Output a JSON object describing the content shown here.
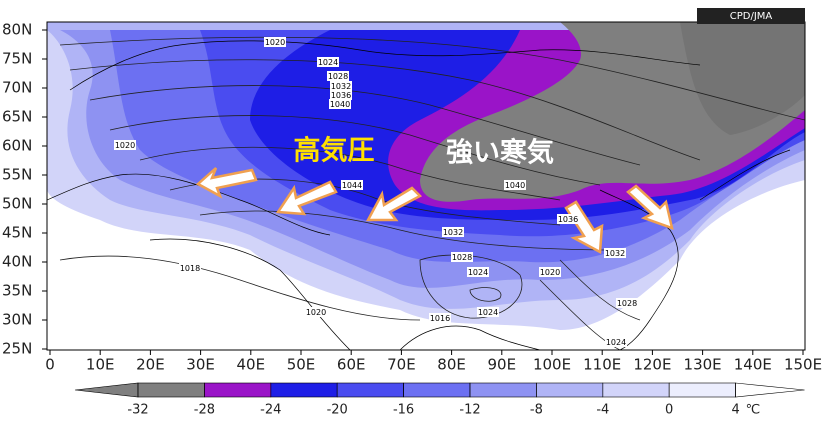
{
  "map": {
    "credit": "CPD/JMA",
    "lat_labels": [
      "80N",
      "75N",
      "70N",
      "65N",
      "60N",
      "55N",
      "50N",
      "45N",
      "40N",
      "35N",
      "30N",
      "25N"
    ],
    "lon_labels": [
      "0",
      "10E",
      "20E",
      "30E",
      "40E",
      "50E",
      "60E",
      "70E",
      "80E",
      "90E",
      "100E",
      "110E",
      "120E",
      "130E",
      "140E",
      "150E"
    ],
    "annotations": [
      "高気圧",
      "強い寒気"
    ],
    "isobar_labels": [
      "1020",
      "1024",
      "1028",
      "1032",
      "1036",
      "1040",
      "1020",
      "1044",
      "1040",
      "1036",
      "1032",
      "1032",
      "1028",
      "1024",
      "1020",
      "1018",
      "1024",
      "1020",
      "1016",
      "1028",
      "1024"
    ]
  },
  "colorbar": {
    "ticks": [
      -32,
      -28,
      -24,
      -20,
      -16,
      -12,
      -8,
      -4,
      0,
      4
    ],
    "unit": "℃",
    "colors": [
      "#7f7f7f",
      "#7f7f7f",
      "#9a14c8",
      "#1e1ee6",
      "#4a4cf0",
      "#6c70f2",
      "#8e92f2",
      "#b0b4f6",
      "#d2d4f9",
      "#eceefd",
      "#ffffff"
    ]
  }
}
